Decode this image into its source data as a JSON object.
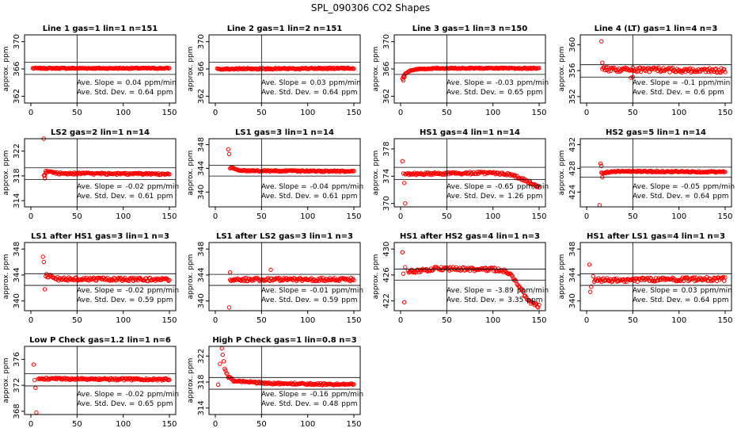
{
  "page_title": "SPL_090306  CO2 Shapes",
  "colors": {
    "points": "#ff0000",
    "axes": "#000000",
    "background": "#ffffff"
  },
  "chart_data": [
    {
      "type": "scatter",
      "title": "Line 1 gas=1 lin=1 n=151",
      "ylabel": "approx. ppm",
      "xlim": [
        0,
        150
      ],
      "ylim": [
        361,
        371
      ],
      "xticks": [
        0,
        50,
        100,
        150
      ],
      "yticks": [
        362,
        366,
        370
      ],
      "hlines": [
        367,
        365.2
      ],
      "vline": 50,
      "slope_label": "Ave. Slope =",
      "slope_value": "0.04",
      "slope_unit": "ppm/min",
      "sd_label": "Ave. Std. Dev. =",
      "sd_value": "0.64",
      "sd_unit": "ppm",
      "trend": {
        "x": [
          2,
          150
        ],
        "y": [
          366.1,
          366.1
        ]
      },
      "noise": 0.08,
      "outliers": []
    },
    {
      "type": "scatter",
      "title": "Line 2 gas=1 lin=2 n=151",
      "ylabel": "approx. ppm",
      "xlim": [
        0,
        150
      ],
      "ylim": [
        361,
        371
      ],
      "xticks": [
        0,
        50,
        100,
        150
      ],
      "yticks": [
        362,
        366,
        370
      ],
      "hlines": [
        367,
        365.2
      ],
      "vline": 50,
      "slope_label": "Ave. Slope =",
      "slope_value": "0.03",
      "slope_unit": "ppm/min",
      "sd_label": "Ave. Std. Dev. =",
      "sd_value": "0.64",
      "sd_unit": "ppm",
      "trend": {
        "x": [
          2,
          150
        ],
        "y": [
          366.0,
          366.1
        ]
      },
      "noise": 0.1,
      "outliers": []
    },
    {
      "type": "scatter",
      "title": "Line 3 gas=1 lin=3 n=150",
      "ylabel": "approx. ppm",
      "xlim": [
        0,
        150
      ],
      "ylim": [
        361,
        371
      ],
      "xticks": [
        0,
        50,
        100,
        150
      ],
      "yticks": [
        362,
        366,
        370
      ],
      "hlines": [
        366.9,
        365.2
      ],
      "vline": 50,
      "slope_label": "Ave. Slope =",
      "slope_value": "-0.03",
      "slope_unit": "ppm/min",
      "sd_label": "Ave. Std. Dev. =",
      "sd_value": "0.65",
      "sd_unit": "ppm",
      "trend": {
        "x": [
          2,
          5,
          10,
          20,
          40,
          150
        ],
        "y": [
          364.6,
          365.3,
          365.7,
          366.0,
          366.1,
          366.1
        ]
      },
      "noise": 0.08,
      "outliers": [
        [
          3,
          364.3
        ],
        [
          4,
          364.8
        ]
      ]
    },
    {
      "type": "scatter",
      "title": "Line 4 (LT) gas=1 lin=4 n=3",
      "ylabel": "approx. ppm",
      "xlim": [
        0,
        150
      ],
      "ylim": [
        351,
        361.5
      ],
      "xticks": [
        0,
        50,
        100,
        150
      ],
      "yticks": [
        352,
        356,
        360
      ],
      "hlines": [
        356.9,
        355
      ],
      "vline": 50,
      "slope_label": "Ave. Slope =",
      "slope_value": "-0.1",
      "slope_unit": "ppm/min",
      "sd_label": "Ave. Std. Dev. =",
      "sd_value": "0.6",
      "sd_unit": "ppm",
      "trend": {
        "x": [
          17,
          150
        ],
        "y": [
          356.2,
          356.0
        ]
      },
      "noise": 0.35,
      "outliers": [
        [
          16,
          360.5
        ],
        [
          17,
          357.2
        ],
        [
          48,
          354.9
        ],
        [
          50,
          355.0
        ]
      ]
    },
    {
      "type": "scatter",
      "title": "LS2 gas=2 lin=1 n=14",
      "ylabel": "approx. ppm",
      "xlim": [
        0,
        150
      ],
      "ylim": [
        313,
        324
      ],
      "xticks": [
        0,
        50,
        100,
        150
      ],
      "yticks": [
        314,
        318,
        322
      ],
      "hlines": [
        319.3,
        317.4
      ],
      "vline": 50,
      "slope_label": "Ave. Slope =",
      "slope_value": "-0.02",
      "slope_unit": "ppm/min",
      "sd_label": "Ave. Std. Dev. =",
      "sd_value": "0.61",
      "sd_unit": "ppm",
      "trend": {
        "x": [
          14,
          18,
          30,
          150
        ],
        "y": [
          318.0,
          318.7,
          318.4,
          318.3
        ]
      },
      "noise": 0.15,
      "outliers": [
        [
          14,
          324.0
        ],
        [
          15,
          317.6
        ],
        [
          16,
          318.8
        ]
      ]
    },
    {
      "type": "scatter",
      "title": "LS1 gas=3 lin=1 n=14",
      "ylabel": "approx. ppm",
      "xlim": [
        0,
        150
      ],
      "ylim": [
        337.5,
        349
      ],
      "xticks": [
        0,
        50,
        100,
        150
      ],
      "yticks": [
        340,
        344,
        348
      ],
      "hlines": [
        344.5,
        342.7
      ],
      "vline": 50,
      "slope_label": "Ave. Slope =",
      "slope_value": "-0.04",
      "slope_unit": "ppm/min",
      "sd_label": "Ave. Std. Dev. =",
      "sd_value": "0.61",
      "sd_unit": "ppm",
      "trend": {
        "x": [
          17,
          25,
          150
        ],
        "y": [
          344.2,
          343.6,
          343.5
        ]
      },
      "noise": 0.12,
      "outliers": [
        [
          14,
          347.2
        ],
        [
          15,
          346.4
        ],
        [
          16,
          344.0
        ]
      ]
    },
    {
      "type": "scatter",
      "title": "HS1 gas=4 lin=1 n=14",
      "ylabel": "approx. ppm",
      "xlim": [
        0,
        150
      ],
      "ylim": [
        369.5,
        379.5
      ],
      "xticks": [
        0,
        50,
        100,
        150
      ],
      "yticks": [
        370,
        374,
        378
      ],
      "hlines": [
        375.3,
        373.5
      ],
      "vline": 50,
      "slope_label": "Ave. Slope =",
      "slope_value": "-0.65",
      "slope_unit": "ppm/min",
      "sd_label": "Ave. Std. Dev. =",
      "sd_value": "1.26",
      "sd_unit": "ppm",
      "trend": {
        "x": [
          5,
          100,
          120,
          135,
          150
        ],
        "y": [
          374.3,
          374.5,
          374.2,
          373.4,
          372.4
        ]
      },
      "noise": 0.18,
      "outliers": [
        [
          2,
          376.2
        ],
        [
          3,
          374.4
        ],
        [
          4,
          373.0
        ],
        [
          5,
          370.0
        ]
      ]
    },
    {
      "type": "scatter",
      "title": "HS2 gas=5 lin=1 n=14",
      "ylabel": "approx. ppm",
      "xlim": [
        0,
        150
      ],
      "ylim": [
        421.5,
        433
      ],
      "xticks": [
        0,
        50,
        100,
        150
      ],
      "yticks": [
        424,
        428,
        432
      ],
      "hlines": [
        428.2,
        426.5
      ],
      "vline": 50,
      "slope_label": "Ave. Slope =",
      "slope_value": "-0.05",
      "slope_unit": "ppm/min",
      "sd_label": "Ave. Std. Dev. =",
      "sd_value": "0.64",
      "sd_unit": "ppm",
      "trend": {
        "x": [
          16,
          30,
          150
        ],
        "y": [
          427.2,
          427.5,
          427.4
        ]
      },
      "noise": 0.12,
      "outliers": [
        [
          14,
          421.8
        ],
        [
          15,
          428.8
        ],
        [
          16,
          428.4
        ],
        [
          17,
          426.5
        ]
      ]
    },
    {
      "type": "scatter",
      "title": "LS1 after HS1 gas=3 lin=1 n=3",
      "ylabel": "approx. ppm",
      "xlim": [
        0,
        150
      ],
      "ylim": [
        338.5,
        349
      ],
      "xticks": [
        0,
        50,
        100,
        150
      ],
      "yticks": [
        340,
        344,
        348
      ],
      "hlines": [
        344.2,
        342.4
      ],
      "vline": 50,
      "slope_label": "Ave. Slope =",
      "slope_value": "-0.02",
      "slope_unit": "ppm/min",
      "sd_label": "Ave. Std. Dev. =",
      "sd_value": "0.59",
      "sd_unit": "ppm",
      "trend": {
        "x": [
          16,
          30,
          150
        ],
        "y": [
          344.0,
          343.4,
          343.3
        ]
      },
      "noise": 0.25,
      "outliers": [
        [
          13,
          346.8
        ],
        [
          14,
          346.0
        ],
        [
          15,
          341.8
        ]
      ]
    },
    {
      "type": "scatter",
      "title": "LS1 after LS2 gas=3 lin=1 n=3",
      "ylabel": "approx. ppm",
      "xlim": [
        0,
        150
      ],
      "ylim": [
        338.5,
        349
      ],
      "xticks": [
        0,
        50,
        100,
        150
      ],
      "yticks": [
        340,
        344,
        348
      ],
      "hlines": [
        344.1,
        342.4
      ],
      "vline": 50,
      "slope_label": "Ave. Slope =",
      "slope_value": "-0.01",
      "slope_unit": "ppm/min",
      "sd_label": "Ave. Std. Dev. =",
      "sd_value": "0.59",
      "sd_unit": "ppm",
      "trend": {
        "x": [
          16,
          150
        ],
        "y": [
          343.3,
          343.3
        ]
      },
      "noise": 0.25,
      "outliers": [
        [
          15,
          339.0
        ],
        [
          16,
          344.4
        ],
        [
          60,
          344.8
        ]
      ]
    },
    {
      "type": "scatter",
      "title": "HS1 after HS2 gas=4 lin=1 n=3",
      "ylabel": "approx. ppm",
      "xlim": [
        0,
        150
      ],
      "ylim": [
        420.5,
        431
      ],
      "xticks": [
        0,
        50,
        100,
        150
      ],
      "yticks": [
        422,
        426,
        430
      ],
      "hlines": [
        426.9,
        425.2
      ],
      "vline": 50,
      "slope_label": "Ave. Slope =",
      "slope_value": "-3.89",
      "slope_unit": "ppm/min",
      "sd_label": "Ave. Std. Dev. =",
      "sd_value": "3.35",
      "sd_unit": "ppm",
      "trend": {
        "x": [
          8,
          40,
          110,
          120,
          130,
          140,
          150
        ],
        "y": [
          426.5,
          427.0,
          426.8,
          426.0,
          423.8,
          421.8,
          421.2
        ]
      },
      "noise": 0.28,
      "outliers": [
        [
          2,
          429.5
        ],
        [
          3,
          426.2
        ],
        [
          4,
          421.8
        ],
        [
          5,
          427.2
        ]
      ]
    },
    {
      "type": "scatter",
      "title": "HS1 after LS1 gas=4 lin=1 n=3",
      "ylabel": "approx. ppm",
      "xlim": [
        0,
        150
      ],
      "ylim": [
        338.5,
        349
      ],
      "xticks": [
        0,
        50,
        100,
        150
      ],
      "yticks": [
        340,
        344,
        348
      ],
      "hlines": [
        344.2,
        342.4
      ],
      "vline": 50,
      "slope_label": "Ave. Slope =",
      "slope_value": "0.03",
      "slope_unit": "ppm/min",
      "sd_label": "Ave. Std. Dev. =",
      "sd_value": "0.64",
      "sd_unit": "ppm",
      "trend": {
        "x": [
          8,
          150
        ],
        "y": [
          343.2,
          343.4
        ]
      },
      "noise": 0.3,
      "outliers": [
        [
          3,
          345.6
        ],
        [
          4,
          341.4
        ],
        [
          5,
          342.2
        ],
        [
          7,
          343.8
        ]
      ]
    },
    {
      "type": "scatter",
      "title": "Low P Check gas=1.2 lin=1 n=6",
      "ylabel": "approx. ppm",
      "xlim": [
        0,
        150
      ],
      "ylim": [
        367.5,
        378
      ],
      "xticks": [
        0,
        50,
        100,
        150
      ],
      "yticks": [
        368,
        372,
        376
      ],
      "hlines": [
        373.8,
        371.9
      ],
      "vline": 50,
      "slope_label": "Ave. Slope =",
      "slope_value": "-0.02",
      "slope_unit": "ppm/min",
      "sd_label": "Ave. Std. Dev. =",
      "sd_value": "0.65",
      "sd_unit": "ppm",
      "trend": {
        "x": [
          8,
          150
        ],
        "y": [
          373.0,
          372.9
        ]
      },
      "noise": 0.16,
      "outliers": [
        [
          3,
          375.2
        ],
        [
          4,
          372.8
        ],
        [
          5,
          371.6
        ],
        [
          6,
          367.8
        ]
      ]
    },
    {
      "type": "scatter",
      "title": "High P Check gas=1 lin=0.8 n=3",
      "ylabel": "approx. ppm",
      "xlim": [
        0,
        150
      ],
      "ylim": [
        313,
        323.5
      ],
      "xticks": [
        0,
        50,
        100,
        150
      ],
      "yticks": [
        314,
        318,
        322
      ],
      "hlines": [
        318.7,
        316.9
      ],
      "vline": 50,
      "slope_label": "Ave. Slope =",
      "slope_value": "-0.16",
      "slope_unit": "ppm/min",
      "sd_label": "Ave. Std. Dev. =",
      "sd_value": "0.48",
      "sd_unit": "ppm",
      "trend": {
        "x": [
          10,
          14,
          20,
          60,
          150
        ],
        "y": [
          320.0,
          318.8,
          318.2,
          317.8,
          317.6
        ]
      },
      "noise": 0.15,
      "outliers": [
        [
          3,
          317.6
        ],
        [
          5,
          320.8
        ],
        [
          7,
          323.2
        ],
        [
          8,
          322.2
        ],
        [
          9,
          321.2
        ]
      ]
    }
  ]
}
